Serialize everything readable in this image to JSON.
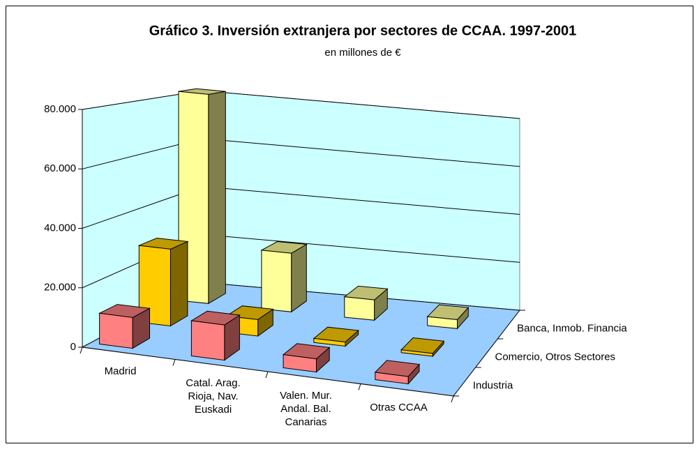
{
  "chart_data": {
    "type": "bar3d",
    "title": "Gráfico 3. Inversión extranjera por sectores de CCAA. 1997-2001",
    "subtitle": "en millones de €",
    "categories": [
      "Madrid",
      "Catal. Arag.\nRioja, Nav.\nEuskadi",
      "Valen. Mur.\nAndal. Bal.\nCanarias",
      "Otras CCAA"
    ],
    "series": [
      {
        "name": "Industria",
        "color": "#FF8080",
        "values": [
          10500,
          12000,
          4500,
          2500
        ]
      },
      {
        "name": "Comercio, Otros Sectores",
        "color": "#FFCC00",
        "values": [
          28000,
          6000,
          1500,
          1000
        ]
      },
      {
        "name": "Banca, Inmob. Financia",
        "color": "#FFFF99",
        "values": [
          82000,
          23000,
          8000,
          3500
        ]
      }
    ],
    "ylim": [
      0,
      80000
    ],
    "yticks": [
      0,
      {
        "value": 20000,
        "label": "20.000"
      },
      {
        "value": 40000,
        "label": "40.000"
      },
      {
        "value": 60000,
        "label": "60.000"
      },
      {
        "value": 80000,
        "label": "80.000"
      }
    ],
    "grid": true,
    "wall_color": "#CCFFFF",
    "floor_color": "#99CCFF"
  }
}
